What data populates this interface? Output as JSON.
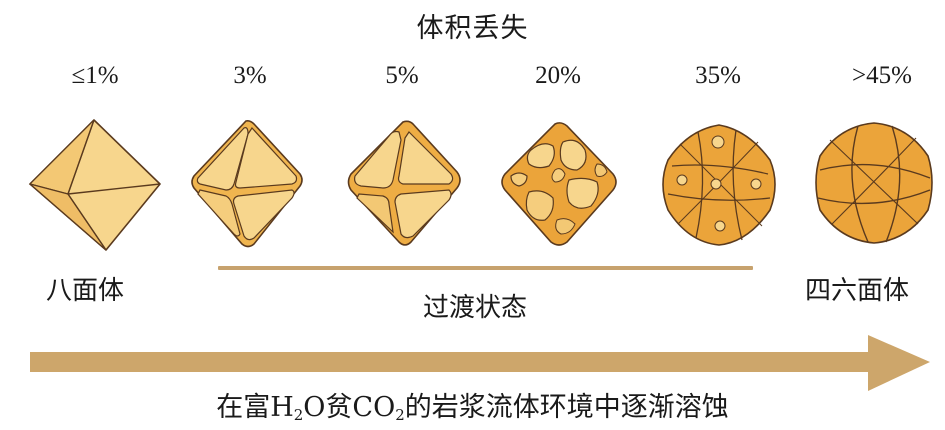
{
  "title": "体积丢失",
  "losses": [
    "≤1%",
    "3%",
    "5%",
    "20%",
    "35%",
    ">45%"
  ],
  "stages": {
    "octahedron": "八面体",
    "transition": "过渡状态",
    "hexoctahedron": "四六面体"
  },
  "caption": {
    "part1": "在富H",
    "sub1": "2",
    "part2": "O贫CO",
    "sub2": "2",
    "part3": "的岩浆流体环境中逐渐溶蚀"
  },
  "colors": {
    "pale_face": "#f7d68d",
    "mid_face": "#f3c166",
    "dark_face": "#ecab3f",
    "outline": "#5a3a1e",
    "band": "#c7a26e",
    "arrow": "#cda66b"
  }
}
